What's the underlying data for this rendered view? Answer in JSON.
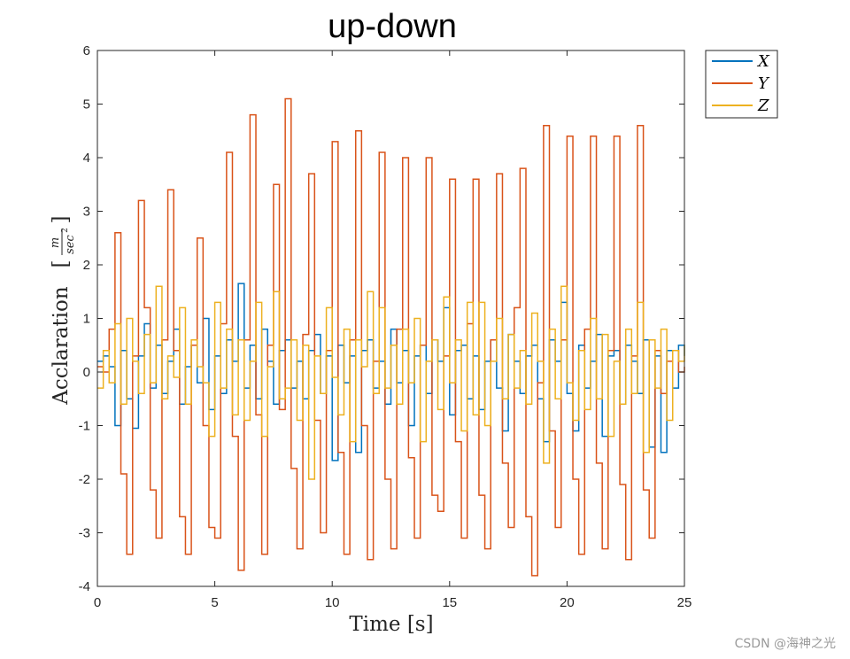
{
  "chart_data": {
    "type": "line",
    "title": "up-down",
    "xlabel": "Time [s]",
    "ylabel": "Acclaration [m/sec²]",
    "ylabel_main": "Acclaration",
    "ylabel_unit_num": "m",
    "ylabel_unit_den": "sec",
    "ylabel_unit_exp": "2",
    "xlim": [
      0,
      25
    ],
    "ylim": [
      -4,
      6
    ],
    "xticks": [
      "0",
      "5",
      "10",
      "15",
      "20",
      "25"
    ],
    "yticks": [
      "6",
      "5",
      "4",
      "3",
      "2",
      "1",
      "0",
      "-1",
      "-2",
      "-3",
      "-4"
    ],
    "grid": false,
    "legend_position": "outside-top-right",
    "series": [
      {
        "name": "X",
        "color": "#0072BD",
        "x": [
          0,
          0.25,
          0.5,
          0.75,
          1,
          1.25,
          1.5,
          1.75,
          2,
          2.25,
          2.5,
          2.75,
          3,
          3.25,
          3.5,
          3.75,
          4,
          4.25,
          4.5,
          4.75,
          5,
          5.25,
          5.5,
          5.75,
          6,
          6.25,
          6.5,
          6.75,
          7,
          7.25,
          7.5,
          7.75,
          8,
          8.25,
          8.5,
          8.75,
          9,
          9.25,
          9.5,
          9.75,
          10,
          10.25,
          10.5,
          10.75,
          11,
          11.25,
          11.5,
          11.75,
          12,
          12.25,
          12.5,
          12.75,
          13,
          13.25,
          13.5,
          13.75,
          14,
          14.25,
          14.5,
          14.75,
          15,
          15.25,
          15.5,
          15.75,
          16,
          16.25,
          16.5,
          16.75,
          17,
          17.25,
          17.5,
          17.75,
          18,
          18.25,
          18.5,
          18.75,
          19,
          19.25,
          19.5,
          19.75,
          20,
          20.25,
          20.5,
          20.75,
          21,
          21.25,
          21.5,
          21.75,
          22,
          22.25,
          22.5,
          22.75,
          23,
          23.25,
          23.5,
          23.75,
          24,
          24.25,
          24.5,
          24.75,
          25
        ],
        "y": [
          0.2,
          0.3,
          0.1,
          -1.0,
          0.4,
          -0.5,
          -1.05,
          0.3,
          0.9,
          -0.3,
          0.5,
          -0.4,
          0.2,
          0.8,
          -0.6,
          0.1,
          0.5,
          -0.2,
          1.0,
          -0.7,
          0.3,
          -0.4,
          0.6,
          0.2,
          1.65,
          -0.3,
          0.5,
          -0.5,
          0.8,
          0.2,
          -0.6,
          0.4,
          0.6,
          -0.3,
          0.2,
          -0.5,
          0.4,
          0.7,
          -0.4,
          0.3,
          -1.65,
          0.5,
          -0.2,
          0.3,
          -1.5,
          0.4,
          0.6,
          -0.3,
          0.2,
          -0.6,
          0.8,
          -0.2,
          0.4,
          -1.0,
          0.3,
          0.5,
          -0.4,
          0.6,
          0.2,
          1.2,
          -0.8,
          0.4,
          0.5,
          -0.5,
          0.3,
          -0.7,
          0.2,
          0.6,
          -0.3,
          -1.1,
          0.7,
          0.2,
          -0.4,
          0.3,
          0.5,
          -0.5,
          -1.3,
          0.6,
          0.2,
          1.3,
          -0.4,
          -1.1,
          0.5,
          -0.3,
          0.2,
          0.7,
          -1.2,
          0.3,
          0.4,
          -0.6,
          0.5,
          0.2,
          -0.4,
          0.6,
          -1.4,
          0.3,
          -1.5,
          0.4,
          -0.3,
          0.5,
          0.3
        ]
      },
      {
        "name": "Y",
        "color": "#D95319",
        "x": [
          0,
          0.25,
          0.5,
          0.75,
          1,
          1.25,
          1.5,
          1.75,
          2,
          2.25,
          2.5,
          2.75,
          3,
          3.25,
          3.5,
          3.75,
          4,
          4.25,
          4.5,
          4.75,
          5,
          5.25,
          5.5,
          5.75,
          6,
          6.25,
          6.5,
          6.75,
          7,
          7.25,
          7.5,
          7.75,
          8,
          8.25,
          8.5,
          8.75,
          9,
          9.25,
          9.5,
          9.75,
          10,
          10.25,
          10.5,
          10.75,
          11,
          11.25,
          11.5,
          11.75,
          12,
          12.25,
          12.5,
          12.75,
          13,
          13.25,
          13.5,
          13.75,
          14,
          14.25,
          14.5,
          14.75,
          15,
          15.25,
          15.5,
          15.75,
          16,
          16.25,
          16.5,
          16.75,
          17,
          17.25,
          17.5,
          17.75,
          18,
          18.25,
          18.5,
          18.75,
          19,
          19.25,
          19.5,
          19.75,
          20,
          20.25,
          20.5,
          20.75,
          21,
          21.25,
          21.5,
          21.75,
          22,
          22.25,
          22.5,
          22.75,
          23,
          23.25,
          23.5,
          23.75,
          24,
          24.25,
          24.5,
          24.75,
          25
        ],
        "y": [
          0.1,
          0.0,
          0.8,
          2.6,
          -1.9,
          -3.4,
          0.3,
          3.2,
          1.2,
          -2.2,
          -3.1,
          0.6,
          3.4,
          0.4,
          -2.7,
          -3.4,
          0.5,
          2.5,
          -1.0,
          -2.9,
          -3.1,
          0.9,
          4.1,
          -1.2,
          -3.7,
          0.6,
          4.8,
          -0.8,
          -3.4,
          0.5,
          3.5,
          -0.7,
          5.1,
          -1.8,
          -3.3,
          0.7,
          3.7,
          -0.9,
          -3.0,
          0.4,
          4.3,
          -1.5,
          -3.4,
          0.6,
          4.5,
          -1.0,
          -3.5,
          0.2,
          4.1,
          -2.0,
          -3.3,
          0.8,
          4.0,
          -1.6,
          -3.1,
          0.5,
          4.0,
          -2.3,
          -2.6,
          0.3,
          3.6,
          -1.3,
          -3.1,
          0.9,
          3.6,
          -2.3,
          -3.3,
          0.6,
          3.7,
          -1.7,
          -2.9,
          1.2,
          3.8,
          -2.7,
          -3.8,
          -0.2,
          4.6,
          -1.1,
          -2.9,
          0.6,
          4.4,
          -2.0,
          -3.4,
          0.8,
          4.4,
          -1.7,
          -3.3,
          0.4,
          4.4,
          -2.1,
          -3.5,
          0.3,
          4.6,
          -2.2,
          -3.1,
          0.4,
          -0.4,
          0.2,
          0.4,
          0.0,
          0.1
        ]
      },
      {
        "name": "Z",
        "color": "#EDB120",
        "x": [
          0,
          0.25,
          0.5,
          0.75,
          1,
          1.25,
          1.5,
          1.75,
          2,
          2.25,
          2.5,
          2.75,
          3,
          3.25,
          3.5,
          3.75,
          4,
          4.25,
          4.5,
          4.75,
          5,
          5.25,
          5.5,
          5.75,
          6,
          6.25,
          6.5,
          6.75,
          7,
          7.25,
          7.5,
          7.75,
          8,
          8.25,
          8.5,
          8.75,
          9,
          9.25,
          9.5,
          9.75,
          10,
          10.25,
          10.5,
          10.75,
          11,
          11.25,
          11.5,
          11.75,
          12,
          12.25,
          12.5,
          12.75,
          13,
          13.25,
          13.5,
          13.75,
          14,
          14.25,
          14.5,
          14.75,
          15,
          15.25,
          15.5,
          15.75,
          16,
          16.25,
          16.5,
          16.75,
          17,
          17.25,
          17.5,
          17.75,
          18,
          18.25,
          18.5,
          18.75,
          19,
          19.25,
          19.5,
          19.75,
          20,
          20.25,
          20.5,
          20.75,
          21,
          21.25,
          21.5,
          21.75,
          22,
          22.25,
          22.5,
          22.75,
          23,
          23.25,
          23.5,
          23.75,
          24,
          24.25,
          24.5,
          24.75,
          25
        ],
        "y": [
          -0.3,
          0.4,
          -0.2,
          0.9,
          -0.6,
          1.0,
          0.2,
          -0.4,
          0.7,
          -0.2,
          1.6,
          -0.5,
          0.3,
          -0.1,
          1.2,
          -0.6,
          0.6,
          0.1,
          -0.2,
          -1.2,
          1.3,
          -0.3,
          0.8,
          -0.8,
          0.6,
          -0.9,
          0.2,
          1.3,
          -1.2,
          0.1,
          1.5,
          -0.5,
          -0.3,
          0.6,
          -0.9,
          0.5,
          -2.0,
          0.3,
          -0.4,
          1.2,
          -0.1,
          -0.8,
          0.8,
          -1.3,
          0.6,
          0.1,
          1.5,
          -0.4,
          1.2,
          -0.3,
          0.5,
          -0.6,
          0.8,
          -0.2,
          1.0,
          -1.3,
          0.2,
          0.6,
          -0.7,
          1.4,
          -0.2,
          0.6,
          -1.1,
          1.3,
          -0.8,
          1.3,
          -1.0,
          0.2,
          1.0,
          -0.5,
          0.7,
          -0.3,
          0.4,
          -0.6,
          1.1,
          0.2,
          -1.7,
          0.8,
          -0.5,
          1.6,
          -0.2,
          -0.9,
          0.4,
          -0.7,
          1.0,
          -0.5,
          0.7,
          -1.2,
          0.2,
          -0.6,
          0.8,
          -0.4,
          1.3,
          -1.5,
          0.6,
          -0.3,
          0.8,
          -0.9,
          0.4,
          0.2,
          0.5
        ]
      }
    ]
  },
  "watermark": "CSDN @海神之光"
}
